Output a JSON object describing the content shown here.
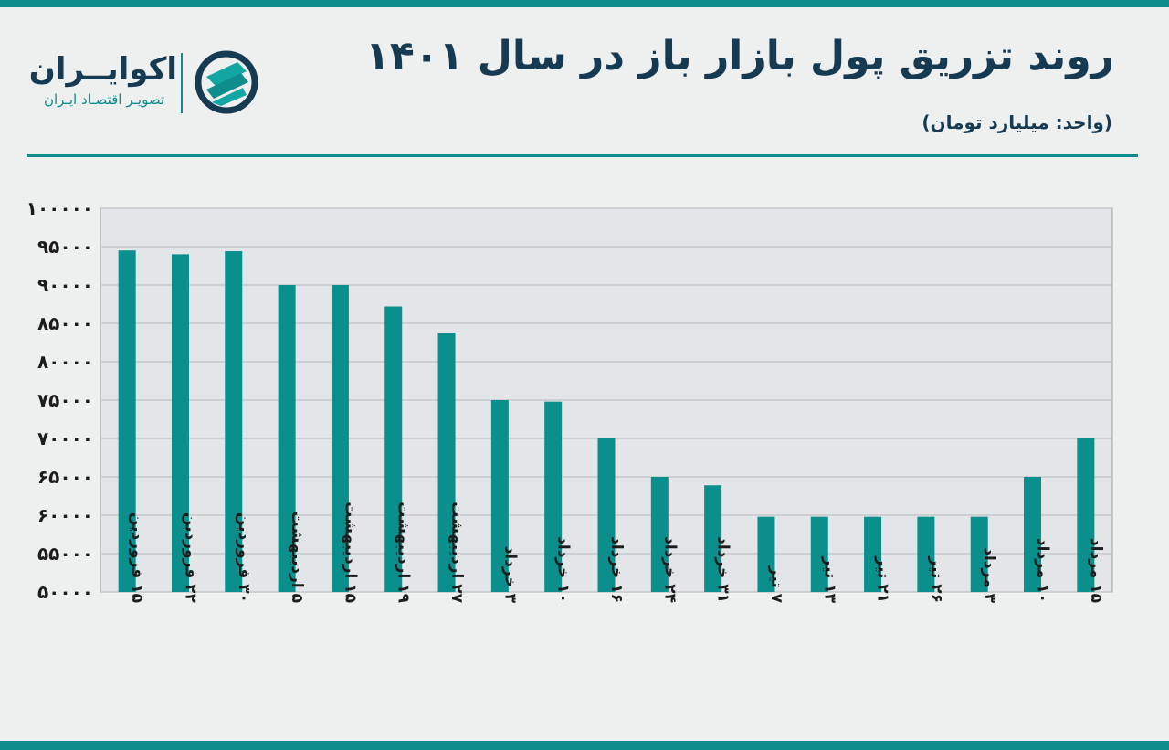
{
  "header": {
    "title": "روند تزریق پول بازار باز  در سال ۱۴۰۱",
    "unit": "(واحد: میلیارد تومان)"
  },
  "brand": {
    "name": "اکوایــران",
    "tagline": "تصویـر اقتصـاد ایـران",
    "logo_icon": "ecoiran-logo-icon"
  },
  "colors": {
    "bar": "#0a8f8c",
    "accent": "#0f8c8c",
    "title": "#163a52",
    "plot_bg": "#e3e6e8",
    "grid": "#c4c8cc"
  },
  "chart_data": {
    "type": "bar",
    "categories": [
      "۱۵ فروردین",
      "۲۲ فروردین",
      "۳۰ فروردین",
      "۵ اردیبهشت",
      "۱۵ اردیبهشت",
      "۱۹ اردیبهشت",
      "۲۷ اردیبهشت",
      "۳ خرداد",
      "۱۰ خرداد",
      "۱۶ خرداد",
      "۲۴ خرداد",
      "۳۱ خرداد",
      "۷ تیر",
      "۱۳ تیر",
      "۲۱ تیر",
      "۲۶ تیر",
      "۳ مرداد",
      "۱۰ مرداد",
      "۱۵ مرداد"
    ],
    "values": [
      94500,
      94000,
      94400,
      90000,
      90000,
      87200,
      83800,
      75000,
      74800,
      70000,
      65000,
      63900,
      59800,
      59800,
      59800,
      59800,
      59800,
      65000,
      70000
    ],
    "ylim": [
      50000,
      100000
    ],
    "yticks": [
      "۵۰۰۰۰",
      "۵۵۰۰۰",
      "۶۰۰۰۰",
      "۶۵۰۰۰",
      "۷۰۰۰۰",
      "۷۵۰۰۰",
      "۸۰۰۰۰",
      "۸۵۰۰۰",
      "۹۰۰۰۰",
      "۹۵۰۰۰",
      "۱۰۰۰۰۰"
    ],
    "grid": true,
    "title": "",
    "xlabel": "",
    "ylabel": ""
  }
}
